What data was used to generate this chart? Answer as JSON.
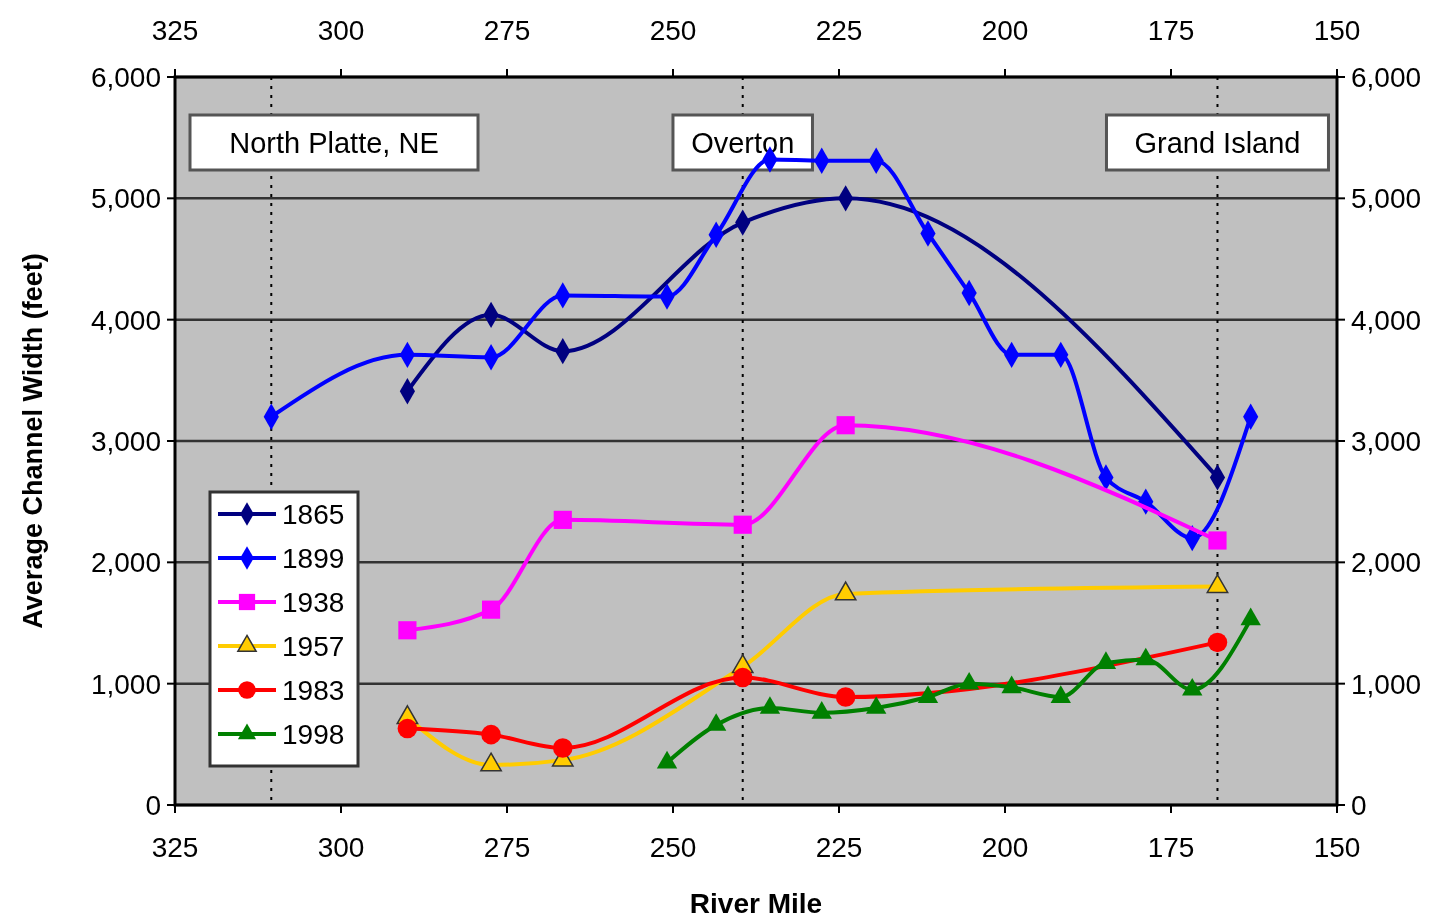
{
  "chart_data": {
    "type": "line",
    "xlabel": "River Mile",
    "ylabel": "Average Channel Width (feet)",
    "xlim": [
      325,
      150
    ],
    "xticks": [
      325,
      300,
      275,
      250,
      225,
      200,
      175,
      150
    ],
    "x2lim": [
      325,
      150
    ],
    "x2ticks": [
      325,
      300,
      275,
      250,
      225,
      200,
      175,
      150
    ],
    "ylim": [
      0,
      6000
    ],
    "yticks": [
      {
        "value": 0,
        "label": "0"
      },
      {
        "value": 1000,
        "label": "1,000"
      },
      {
        "value": 2000,
        "label": "2,000"
      },
      {
        "value": 3000,
        "label": "3,000"
      },
      {
        "value": 4000,
        "label": "4,000"
      },
      {
        "value": 5000,
        "label": "5,000"
      },
      {
        "value": 6000,
        "label": "6,000"
      }
    ],
    "y2lim": [
      0,
      6000
    ],
    "y2ticks": [
      {
        "value": 0,
        "label": "0"
      },
      {
        "value": 1000,
        "label": "1,000"
      },
      {
        "value": 2000,
        "label": "2,000"
      },
      {
        "value": 3000,
        "label": "3,000"
      },
      {
        "value": 4000,
        "label": "4,000"
      },
      {
        "value": 5000,
        "label": "5,000"
      },
      {
        "value": 6000,
        "label": "6,000"
      }
    ],
    "grid": "y",
    "legend": "left",
    "ref_lines": [
      {
        "axis": "x",
        "value": 310.5,
        "label": "North Platte, NE",
        "line_style": "dotted",
        "color": "#000000"
      },
      {
        "axis": "x",
        "value": 239.5,
        "label": "Overton",
        "line_style": "dotted",
        "color": "#000000"
      },
      {
        "axis": "x",
        "value": 168,
        "label": "Grand Island",
        "line_style": "dotted",
        "color": "#000000"
      }
    ],
    "series": [
      {
        "name": "1865",
        "color": "#000080",
        "marker": "diamond",
        "x": [
          290,
          277.4,
          266.6,
          239.5,
          224,
          168
        ],
        "values": [
          3410,
          4040,
          3740,
          4800,
          5000,
          2700
        ]
      },
      {
        "name": "1899",
        "color": "#0000ff",
        "marker": "diamond",
        "x": [
          310.5,
          290,
          277.4,
          266.6,
          250.9,
          243.5,
          235.4,
          227.6,
          219.4,
          211.6,
          205.4,
          199,
          191.6,
          184.8,
          178.8,
          171.8,
          163
        ],
        "values": [
          3200,
          3710,
          3690,
          4200,
          4190,
          4700,
          5320,
          5310,
          5310,
          4710,
          4220,
          3710,
          3710,
          2700,
          2500,
          2200,
          3200
        ]
      },
      {
        "name": "1938",
        "color": "#ff00ff",
        "marker": "square",
        "x": [
          290,
          277.4,
          266.6,
          239.5,
          224,
          168
        ],
        "values": [
          1440,
          1610,
          2350,
          2310,
          3130,
          2180
        ]
      },
      {
        "name": "1957",
        "color": "#ffcc00",
        "marker": "triangle",
        "x": [
          290,
          277.4,
          266.6,
          239.5,
          224,
          168
        ],
        "values": [
          720,
          330,
          370,
          1140,
          1740,
          1800
        ]
      },
      {
        "name": "1983",
        "color": "#ff0000",
        "marker": "circle",
        "x": [
          290,
          277.4,
          266.6,
          239.5,
          224,
          168
        ],
        "values": [
          630,
          580,
          470,
          1050,
          890,
          1340
        ]
      },
      {
        "name": "1998",
        "color": "#008000",
        "marker": "triangle",
        "x": [
          250.9,
          243.5,
          235.4,
          227.6,
          219.4,
          211.6,
          205.4,
          199,
          191.6,
          184.8,
          178.8,
          171.8,
          163
        ],
        "values": [
          350,
          660,
          800,
          760,
          800,
          890,
          1000,
          970,
          890,
          1170,
          1200,
          950,
          1530
        ]
      }
    ]
  }
}
